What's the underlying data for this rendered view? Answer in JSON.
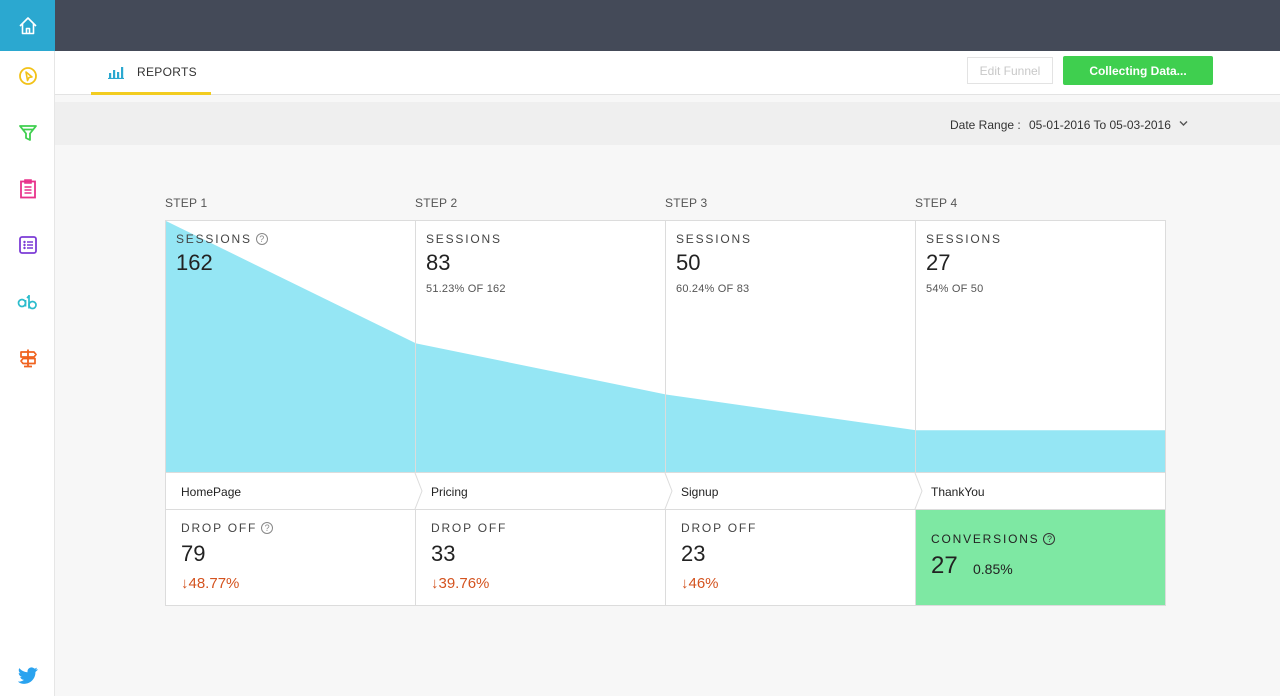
{
  "nav": {
    "home_icon": "home-icon",
    "items": [
      "heatmap-click-icon",
      "funnel-icon",
      "clipboard-icon",
      "list-icon",
      "ab-test-icon",
      "signpost-icon"
    ],
    "bottom_icon": "twitter-icon"
  },
  "tabs": {
    "reports_label": "REPORTS"
  },
  "toolbar": {
    "edit_label": "Edit Funnel",
    "collect_label": "Collecting Data..."
  },
  "date": {
    "label": "Date Range :",
    "value": "05-01-2016 To 05-03-2016"
  },
  "colors": {
    "accent": "#2ba8d0",
    "funnel_fill": "#95e6f4",
    "success": "#3fcf4f",
    "conversion_bg": "#7ee8a3",
    "drop_text": "#d4531f",
    "tab_underline": "#f2cc1f"
  },
  "funnel": {
    "steps": [
      {
        "step": "STEP 1",
        "caption": "SESSIONS",
        "sessions": "162",
        "sessions_value": 162,
        "sub": "",
        "page": "HomePage",
        "drop_caption": "DROP OFF",
        "drop_count": "79",
        "drop_pct": "↓48.77%"
      },
      {
        "step": "STEP 2",
        "caption": "SESSIONS",
        "sessions": "83",
        "sessions_value": 83,
        "sub": "51.23% OF 162",
        "page": "Pricing",
        "drop_caption": "DROP OFF",
        "drop_count": "33",
        "drop_pct": "↓39.76%"
      },
      {
        "step": "STEP 3",
        "caption": "SESSIONS",
        "sessions": "50",
        "sessions_value": 50,
        "sub": "60.24% OF 83",
        "page": "Signup",
        "drop_caption": "DROP OFF",
        "drop_count": "23",
        "drop_pct": "↓46%"
      },
      {
        "step": "STEP 4",
        "caption": "SESSIONS",
        "sessions": "27",
        "sessions_value": 27,
        "sub": "54% OF 50",
        "page": "ThankYou"
      }
    ],
    "conversions": {
      "caption": "CONVERSIONS",
      "count": "27",
      "pct": "0.85%"
    }
  }
}
